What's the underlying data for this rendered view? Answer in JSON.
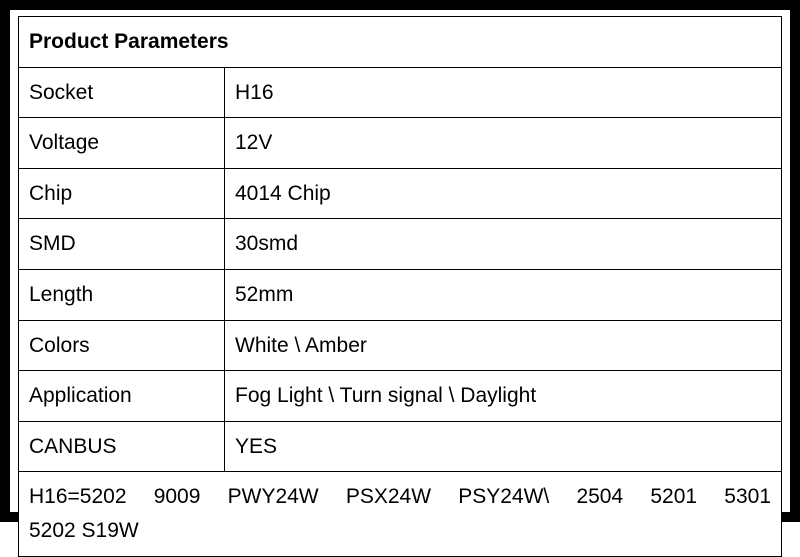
{
  "title": "Product Parameters",
  "colors": {
    "text": "#000000",
    "border": "#000000",
    "background": "#ffffff",
    "footer_text": "#ff0000"
  },
  "typography": {
    "title_fontsize": 28,
    "body_fontsize": 21,
    "footer_fontsize": 21,
    "font_family": "Arial",
    "title_weight": "bold"
  },
  "table": {
    "type": "table",
    "column_widths_pct": [
      27,
      73
    ],
    "border_width": 1.5,
    "rows": [
      {
        "label": "Socket",
        "value": "H16"
      },
      {
        "label": "Voltage",
        "value": "12V"
      },
      {
        "label": "Chip",
        "value": "4014 Chip"
      },
      {
        "label": "SMD",
        "value": "30smd"
      },
      {
        "label": "Length",
        "value": "52mm"
      },
      {
        "label": "Colors",
        "value": "White \\ Amber"
      },
      {
        "label": "Application",
        "value": "Fog Light \\ Turn signal \\ Daylight"
      },
      {
        "label": "CANBUS",
        "value": "YES"
      }
    ]
  },
  "footer": {
    "line1": "H16=5202 9009 PWY24W PSX24W PSY24W\\ 2504 5201 5301",
    "line2": "5202 S19W"
  },
  "frame": {
    "outer_border_width": 10,
    "outer_border_color": "#000000"
  }
}
